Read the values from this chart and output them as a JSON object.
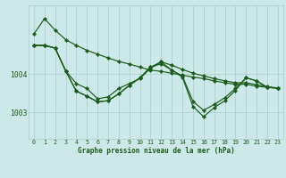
{
  "bg_color": "#cde8e8",
  "grid_color": "#a8cccc",
  "line_color": "#1a5c1a",
  "marker_color": "#1a5c1a",
  "xlabel": "Graphe pression niveau de la mer (hPa)",
  "ylabel_ticks": [
    1003,
    1004
  ],
  "x_ticks": [
    0,
    1,
    2,
    3,
    4,
    5,
    6,
    7,
    8,
    9,
    10,
    11,
    12,
    13,
    14,
    15,
    16,
    17,
    18,
    19,
    20,
    21,
    22,
    23
  ],
  "xlim": [
    -0.5,
    23.5
  ],
  "ylim": [
    1002.3,
    1005.8
  ],
  "line1": [
    1005.05,
    1005.45,
    1005.15,
    1004.9,
    1004.75,
    1004.62,
    1004.52,
    1004.42,
    1004.33,
    1004.26,
    1004.18,
    1004.1,
    1004.07,
    1004.02,
    1003.97,
    1003.92,
    1003.88,
    1003.82,
    1003.77,
    1003.73,
    1003.73,
    1003.68,
    1003.65,
    1003.63
  ],
  "line2": [
    1004.75,
    1004.75,
    1004.68,
    1004.08,
    1003.75,
    1003.62,
    1003.35,
    1003.4,
    1003.62,
    1003.75,
    1003.88,
    1004.15,
    1004.32,
    1004.23,
    1004.12,
    1004.02,
    1003.95,
    1003.88,
    1003.82,
    1003.77,
    1003.77,
    1003.72,
    1003.67,
    1003.63
  ],
  "line3": [
    1004.75,
    1004.75,
    1004.68,
    1004.08,
    1003.55,
    1003.42,
    1003.27,
    1003.3,
    1003.48,
    1003.7,
    1003.9,
    1004.18,
    1004.32,
    1004.1,
    1003.95,
    1003.28,
    1003.05,
    1003.2,
    1003.38,
    1003.62,
    1003.9,
    1003.82,
    1003.65,
    1003.63
  ],
  "line4": [
    1004.75,
    1004.75,
    1004.68,
    1004.08,
    1003.55,
    1003.42,
    1003.27,
    1003.3,
    1003.48,
    1003.7,
    1003.9,
    1004.18,
    1004.27,
    1004.1,
    1003.92,
    1003.15,
    1002.88,
    1003.12,
    1003.3,
    1003.57,
    1003.9,
    1003.82,
    1003.65,
    1003.63
  ]
}
